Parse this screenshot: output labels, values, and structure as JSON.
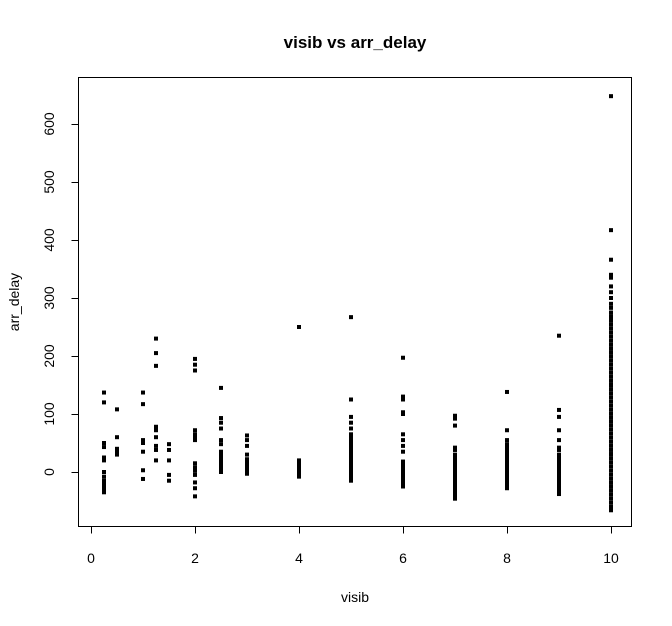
{
  "chart_data": {
    "type": "scatter",
    "title": "visib vs arr_delay",
    "xlabel": "visib",
    "ylabel": "arr_delay",
    "xlim": [
      0,
      10
    ],
    "ylim": [
      -66,
      650
    ],
    "xticks": [
      0,
      2,
      4,
      6,
      8,
      10
    ],
    "yticks": [
      0,
      100,
      200,
      300,
      400,
      500,
      600
    ],
    "grid": false,
    "legend": "none",
    "series": [
      {
        "color": "#000000",
        "points": [
          [
            0.25,
            137
          ],
          [
            0.25,
            120
          ],
          [
            0.25,
            50
          ],
          [
            0.25,
            43
          ],
          [
            0.25,
            25
          ],
          [
            0.25,
            20
          ],
          [
            0.25,
            0
          ],
          [
            0.25,
            -8
          ],
          [
            0.25,
            -15
          ],
          [
            0.25,
            -20
          ],
          [
            0.25,
            -25
          ],
          [
            0.25,
            -30
          ],
          [
            0.25,
            -35
          ],
          [
            0.5,
            108
          ],
          [
            0.5,
            60
          ],
          [
            0.5,
            40
          ],
          [
            0.5,
            36
          ],
          [
            0.5,
            33
          ],
          [
            0.5,
            30
          ],
          [
            1.0,
            137
          ],
          [
            1.0,
            117
          ],
          [
            1.0,
            55
          ],
          [
            1.0,
            50
          ],
          [
            1.0,
            35
          ],
          [
            1.0,
            3
          ],
          [
            1.0,
            -12
          ],
          [
            1.25,
            230
          ],
          [
            1.25,
            205
          ],
          [
            1.25,
            183
          ],
          [
            1.25,
            78
          ],
          [
            1.25,
            72
          ],
          [
            1.25,
            60
          ],
          [
            1.25,
            45
          ],
          [
            1.25,
            38
          ],
          [
            1.25,
            20
          ],
          [
            1.5,
            48
          ],
          [
            1.5,
            38
          ],
          [
            1.5,
            20
          ],
          [
            1.5,
            -5
          ],
          [
            1.5,
            -15
          ],
          [
            2.0,
            195
          ],
          [
            2.0,
            185
          ],
          [
            2.0,
            175
          ],
          [
            2.0,
            72
          ],
          [
            2.0,
            65
          ],
          [
            2.0,
            60
          ],
          [
            2.0,
            55
          ],
          [
            2.0,
            15
          ],
          [
            2.0,
            8
          ],
          [
            2.0,
            2
          ],
          [
            2.0,
            -5
          ],
          [
            2.0,
            -18
          ],
          [
            2.0,
            -28
          ],
          [
            2.0,
            -42
          ],
          [
            2.5,
            145
          ],
          [
            2.5,
            93
          ],
          [
            2.5,
            85
          ],
          [
            2.5,
            75
          ],
          [
            2.5,
            55
          ],
          [
            2.5,
            48
          ],
          [
            2.5,
            35
          ],
          [
            2.5,
            30
          ],
          [
            2.5,
            25
          ],
          [
            2.5,
            20
          ],
          [
            2.5,
            15
          ],
          [
            2.5,
            10
          ],
          [
            2.5,
            5
          ],
          [
            2.5,
            0
          ],
          [
            3.0,
            63
          ],
          [
            3.0,
            55
          ],
          [
            3.0,
            45
          ],
          [
            3.0,
            30
          ],
          [
            3.0,
            22
          ],
          [
            3.0,
            18
          ],
          [
            3.0,
            15
          ],
          [
            3.0,
            12
          ],
          [
            3.0,
            9
          ],
          [
            3.0,
            6
          ],
          [
            3.0,
            3
          ],
          [
            3.0,
            0
          ],
          [
            3.0,
            -3
          ],
          [
            4.0,
            250
          ],
          [
            4.0,
            20
          ],
          [
            4.0,
            15
          ],
          [
            4.0,
            10
          ],
          [
            4.0,
            5
          ],
          [
            4.0,
            0
          ],
          [
            4.0,
            -3
          ],
          [
            4.0,
            -8
          ],
          [
            5.0,
            267
          ],
          [
            5.0,
            125
          ],
          [
            5.0,
            95
          ],
          [
            5.0,
            85
          ],
          [
            5.0,
            75
          ],
          [
            5.0,
            65
          ],
          [
            5.0,
            60
          ],
          [
            5.0,
            55
          ],
          [
            5.0,
            50
          ],
          [
            5.0,
            45
          ],
          [
            5.0,
            40
          ],
          [
            5.0,
            35
          ],
          [
            5.0,
            30
          ],
          [
            5.0,
            25
          ],
          [
            5.0,
            20
          ],
          [
            5.0,
            15
          ],
          [
            5.0,
            10
          ],
          [
            5.0,
            5
          ],
          [
            5.0,
            0
          ],
          [
            5.0,
            -5
          ],
          [
            5.0,
            -10
          ],
          [
            5.0,
            -15
          ],
          [
            6.0,
            197
          ],
          [
            6.0,
            130
          ],
          [
            6.0,
            125
          ],
          [
            6.0,
            103
          ],
          [
            6.0,
            100
          ],
          [
            6.0,
            65
          ],
          [
            6.0,
            55
          ],
          [
            6.0,
            45
          ],
          [
            6.0,
            35
          ],
          [
            6.0,
            18
          ],
          [
            6.0,
            15
          ],
          [
            6.0,
            12
          ],
          [
            6.0,
            9
          ],
          [
            6.0,
            6
          ],
          [
            6.0,
            3
          ],
          [
            6.0,
            0
          ],
          [
            6.0,
            -3
          ],
          [
            6.0,
            -6
          ],
          [
            6.0,
            -9
          ],
          [
            6.0,
            -12
          ],
          [
            6.0,
            -15
          ],
          [
            6.0,
            -20
          ],
          [
            6.0,
            -25
          ],
          [
            7.0,
            97
          ],
          [
            7.0,
            92
          ],
          [
            7.0,
            80
          ],
          [
            7.0,
            42
          ],
          [
            7.0,
            38
          ],
          [
            7.0,
            30
          ],
          [
            7.0,
            27
          ],
          [
            7.0,
            24
          ],
          [
            7.0,
            21
          ],
          [
            7.0,
            18
          ],
          [
            7.0,
            15
          ],
          [
            7.0,
            12
          ],
          [
            7.0,
            9
          ],
          [
            7.0,
            6
          ],
          [
            7.0,
            3
          ],
          [
            7.0,
            0
          ],
          [
            7.0,
            -3
          ],
          [
            7.0,
            -6
          ],
          [
            7.0,
            -9
          ],
          [
            7.0,
            -12
          ],
          [
            7.0,
            -15
          ],
          [
            7.0,
            -18
          ],
          [
            7.0,
            -21
          ],
          [
            7.0,
            -24
          ],
          [
            7.0,
            -27
          ],
          [
            7.0,
            -30
          ],
          [
            7.0,
            -33
          ],
          [
            7.0,
            -36
          ],
          [
            7.0,
            -39
          ],
          [
            7.0,
            -42
          ],
          [
            7.0,
            -46
          ],
          [
            8.0,
            138
          ],
          [
            8.0,
            72
          ],
          [
            8.0,
            55
          ],
          [
            8.0,
            48
          ],
          [
            8.0,
            42
          ],
          [
            8.0,
            38
          ],
          [
            8.0,
            32
          ],
          [
            8.0,
            28
          ],
          [
            8.0,
            24
          ],
          [
            8.0,
            20
          ],
          [
            8.0,
            16
          ],
          [
            8.0,
            12
          ],
          [
            8.0,
            8
          ],
          [
            8.0,
            4
          ],
          [
            8.0,
            0
          ],
          [
            8.0,
            -4
          ],
          [
            8.0,
            -8
          ],
          [
            8.0,
            -12
          ],
          [
            8.0,
            -16
          ],
          [
            8.0,
            -20
          ],
          [
            8.0,
            -24
          ],
          [
            8.0,
            -28
          ],
          [
            9.0,
            235
          ],
          [
            9.0,
            107
          ],
          [
            9.0,
            95
          ],
          [
            9.0,
            72
          ],
          [
            9.0,
            55
          ],
          [
            9.0,
            42
          ],
          [
            9.0,
            38
          ],
          [
            9.0,
            30
          ],
          [
            9.0,
            26
          ],
          [
            9.0,
            22
          ],
          [
            9.0,
            18
          ],
          [
            9.0,
            14
          ],
          [
            9.0,
            10
          ],
          [
            9.0,
            6
          ],
          [
            9.0,
            2
          ],
          [
            9.0,
            -2
          ],
          [
            9.0,
            -6
          ],
          [
            9.0,
            -10
          ],
          [
            9.0,
            -14
          ],
          [
            9.0,
            -18
          ],
          [
            9.0,
            -22
          ],
          [
            9.0,
            -26
          ],
          [
            9.0,
            -30
          ],
          [
            9.0,
            -34
          ],
          [
            9.0,
            -38
          ],
          [
            10.0,
            648
          ],
          [
            10.0,
            417
          ],
          [
            10.0,
            366
          ],
          [
            10.0,
            340
          ],
          [
            10.0,
            335
          ],
          [
            10.0,
            320
          ],
          [
            10.0,
            310
          ],
          [
            10.0,
            300
          ],
          [
            10.0,
            290
          ],
          [
            10.0,
            283
          ],
          [
            10.0,
            275
          ],
          [
            10.0,
            268
          ],
          [
            10.0,
            262
          ],
          [
            10.0,
            255
          ],
          [
            10.0,
            248
          ],
          [
            10.0,
            241
          ],
          [
            10.0,
            234
          ],
          [
            10.0,
            227
          ],
          [
            10.0,
            220
          ],
          [
            10.0,
            213
          ],
          [
            10.0,
            206
          ],
          [
            10.0,
            199
          ],
          [
            10.0,
            192
          ],
          [
            10.0,
            185
          ],
          [
            10.0,
            178
          ],
          [
            10.0,
            171
          ],
          [
            10.0,
            164
          ],
          [
            10.0,
            157
          ],
          [
            10.0,
            150
          ],
          [
            10.0,
            143
          ],
          [
            10.0,
            136
          ],
          [
            10.0,
            129
          ],
          [
            10.0,
            122
          ],
          [
            10.0,
            115
          ],
          [
            10.0,
            108
          ],
          [
            10.0,
            101
          ],
          [
            10.0,
            94
          ],
          [
            10.0,
            87
          ],
          [
            10.0,
            80
          ],
          [
            10.0,
            73
          ],
          [
            10.0,
            66
          ],
          [
            10.0,
            59
          ],
          [
            10.0,
            52
          ],
          [
            10.0,
            45
          ],
          [
            10.0,
            38
          ],
          [
            10.0,
            31
          ],
          [
            10.0,
            24
          ],
          [
            10.0,
            17
          ],
          [
            10.0,
            10
          ],
          [
            10.0,
            3
          ],
          [
            10.0,
            -4
          ],
          [
            10.0,
            -11
          ],
          [
            10.0,
            -18
          ],
          [
            10.0,
            -25
          ],
          [
            10.0,
            -32
          ],
          [
            10.0,
            -39
          ],
          [
            10.0,
            -46
          ],
          [
            10.0,
            -53
          ],
          [
            10.0,
            -60
          ],
          [
            10.0,
            -66
          ]
        ]
      }
    ]
  }
}
